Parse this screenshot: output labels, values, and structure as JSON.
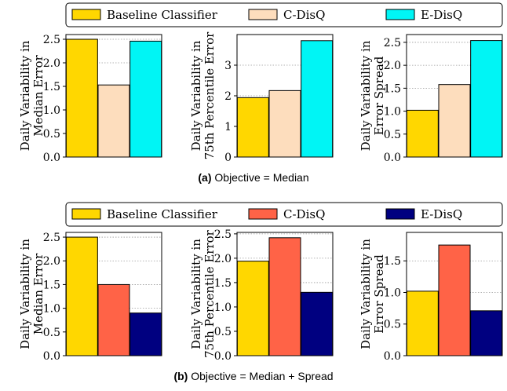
{
  "figure_a": {
    "caption_label": "(a)",
    "caption_text": "Objective = Median",
    "legend": [
      {
        "label": "Baseline Classifier",
        "color": "#FFD700"
      },
      {
        "label": "C-DisQ",
        "color": "#FDDDBD"
      },
      {
        "label": "E-DisQ",
        "color": "#00F5F5"
      }
    ]
  },
  "figure_b": {
    "caption_label": "(b)",
    "caption_text": "Objective = Median + Spread",
    "legend": [
      {
        "label": "Baseline Classifier",
        "color": "#FFD700"
      },
      {
        "label": "C-DisQ",
        "color": "#FF6347"
      },
      {
        "label": "E-DisQ",
        "color": "#000080"
      }
    ]
  },
  "chart_data": [
    {
      "type": "bar",
      "row": "a",
      "ylabel": [
        "Daily Variability in",
        "Median Error"
      ],
      "categories": [
        "Baseline Classifier",
        "C-DisQ",
        "E-DisQ"
      ],
      "values": [
        2.5,
        1.53,
        2.46
      ],
      "colors": [
        "#FFD700",
        "#FDDDBD",
        "#00F5F5"
      ],
      "ylim": [
        0,
        2.6
      ],
      "yticks": [
        "0.0",
        "0.5",
        "1.0",
        "1.5",
        "2.0",
        "2.5"
      ],
      "grid": true
    },
    {
      "type": "bar",
      "row": "a",
      "ylabel": [
        "Daily Variability in",
        "75th Percentile Error"
      ],
      "categories": [
        "Baseline Classifier",
        "C-DisQ",
        "E-DisQ"
      ],
      "values": [
        1.94,
        2.17,
        3.8
      ],
      "colors": [
        "#FFD700",
        "#FDDDBD",
        "#00F5F5"
      ],
      "ylim": [
        0,
        4.0
      ],
      "yticks": [
        "0",
        "1",
        "2",
        "3"
      ],
      "grid": true
    },
    {
      "type": "bar",
      "row": "a",
      "ylabel": [
        "Daily Variability in",
        "Error Spread"
      ],
      "categories": [
        "Baseline Classifier",
        "C-DisQ",
        "E-DisQ"
      ],
      "values": [
        1.02,
        1.58,
        2.54
      ],
      "colors": [
        "#FFD700",
        "#FDDDBD",
        "#00F5F5"
      ],
      "ylim": [
        0,
        2.67
      ],
      "yticks": [
        "0.0",
        "0.5",
        "1.0",
        "1.5",
        "2.0",
        "2.5"
      ],
      "grid": true
    },
    {
      "type": "bar",
      "row": "b",
      "ylabel": [
        "Daily Variability in",
        "Median Error"
      ],
      "categories": [
        "Baseline Classifier",
        "C-DisQ",
        "E-DisQ"
      ],
      "values": [
        2.5,
        1.5,
        0.9
      ],
      "colors": [
        "#FFD700",
        "#FF6347",
        "#000080"
      ],
      "ylim": [
        0,
        2.6
      ],
      "yticks": [
        "0.0",
        "0.5",
        "1.0",
        "1.5",
        "2.0",
        "2.5"
      ],
      "grid": true
    },
    {
      "type": "bar",
      "row": "b",
      "ylabel": [
        "Daily Variability in",
        "75th Percentile Error"
      ],
      "categories": [
        "Baseline Classifier",
        "C-DisQ",
        "E-DisQ"
      ],
      "values": [
        1.94,
        2.42,
        1.3
      ],
      "colors": [
        "#FFD700",
        "#FF6347",
        "#000080"
      ],
      "ylim": [
        0,
        2.53
      ],
      "yticks": [
        "0.0",
        "0.5",
        "1.0",
        "1.5",
        "2.0",
        "2.5"
      ],
      "grid": true
    },
    {
      "type": "bar",
      "row": "b",
      "ylabel": [
        "Daily Variability in",
        "Error Spread"
      ],
      "categories": [
        "Baseline Classifier",
        "C-DisQ",
        "E-DisQ"
      ],
      "values": [
        1.02,
        1.75,
        0.71
      ],
      "colors": [
        "#FFD700",
        "#FF6347",
        "#000080"
      ],
      "ylim": [
        0,
        1.95
      ],
      "yticks": [
        "0.0",
        "0.5",
        "1.0",
        "1.5"
      ],
      "grid": true
    }
  ]
}
